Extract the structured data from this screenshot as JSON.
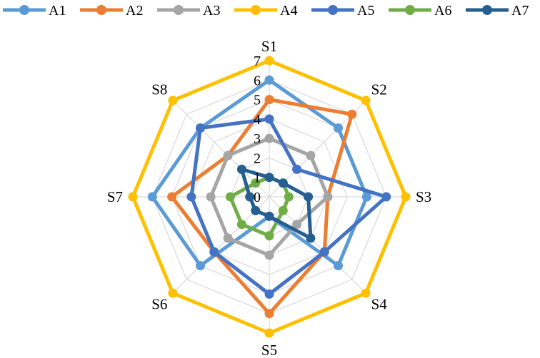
{
  "chart_data": {
    "type": "radar",
    "categories": [
      "S1",
      "S2",
      "S3",
      "S4",
      "S5",
      "S6",
      "S7",
      "S8"
    ],
    "r_ticks": [
      "0",
      "1",
      "2",
      "3",
      "4",
      "5",
      "6",
      "7"
    ],
    "rlim": [
      0,
      7
    ],
    "grid": true,
    "legend_position": "top",
    "series": [
      {
        "name": "A1",
        "color": "#5B9BD5",
        "values": [
          6,
          5,
          5,
          5,
          1,
          5,
          6,
          5
        ]
      },
      {
        "name": "A2",
        "color": "#ED7D31",
        "values": [
          5,
          6,
          3,
          4,
          6,
          4,
          5,
          3
        ]
      },
      {
        "name": "A3",
        "color": "#A5A5A5",
        "values": [
          3,
          3,
          3,
          2,
          3,
          3,
          3,
          3
        ]
      },
      {
        "name": "A4",
        "color": "#FFC000",
        "values": [
          7,
          7,
          7,
          7,
          7,
          7,
          7,
          7
        ]
      },
      {
        "name": "A5",
        "color": "#4472C4",
        "values": [
          4,
          2,
          6,
          4,
          5,
          4,
          4,
          5
        ]
      },
      {
        "name": "A6",
        "color": "#70AD47",
        "values": [
          1,
          1,
          1,
          1,
          2,
          2,
          2,
          1
        ]
      },
      {
        "name": "A7",
        "color": "#255E91",
        "values": [
          1,
          1,
          2,
          3,
          1,
          1,
          1,
          2
        ]
      }
    ]
  }
}
